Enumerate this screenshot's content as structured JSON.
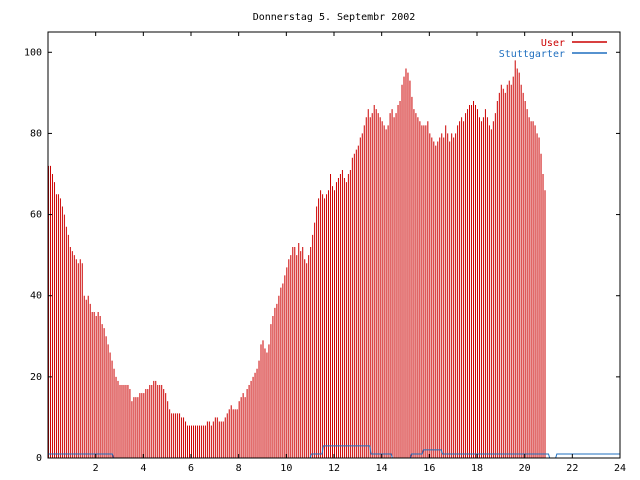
{
  "chart_data": {
    "type": "bar",
    "title": "Donnerstag 5. Septembr 2002",
    "xlabel": "",
    "ylabel": "",
    "xlim": [
      0,
      24
    ],
    "ylim": [
      0,
      105
    ],
    "x_ticks": [
      2,
      4,
      6,
      8,
      10,
      12,
      14,
      16,
      18,
      20,
      22,
      24
    ],
    "y_ticks": [
      0,
      20,
      40,
      60,
      80,
      100
    ],
    "grid": false,
    "legend_position": "top-right",
    "colors": {
      "user": "#cc0000",
      "stuttgarter": "#1f6fbf",
      "axis": "#000000"
    },
    "series": [
      {
        "name": "User",
        "step_hours": 0.08333,
        "values": [
          72,
          72,
          70,
          68,
          65,
          65,
          64,
          62,
          60,
          57,
          55,
          52,
          51,
          50,
          49,
          48,
          49,
          48,
          40,
          39,
          40,
          38,
          36,
          36,
          35,
          36,
          35,
          33,
          32,
          30,
          28,
          26,
          24,
          22,
          20,
          19,
          18,
          18,
          18,
          18,
          18,
          17,
          14,
          15,
          15,
          15,
          16,
          16,
          16,
          17,
          17,
          18,
          18,
          19,
          19,
          18,
          18,
          18,
          17,
          16,
          14,
          12,
          11,
          11,
          11,
          11,
          11,
          10,
          10,
          9,
          8,
          8,
          8,
          8,
          8,
          8,
          8,
          8,
          8,
          8,
          9,
          9,
          8,
          9,
          10,
          10,
          9,
          9,
          9,
          10,
          11,
          12,
          13,
          12,
          12,
          12,
          14,
          15,
          16,
          15,
          17,
          18,
          19,
          20,
          21,
          22,
          24,
          28,
          29,
          27,
          26,
          28,
          33,
          35,
          37,
          38,
          40,
          42,
          43,
          45,
          47,
          49,
          50,
          52,
          52,
          50,
          53,
          51,
          52,
          49,
          48,
          50,
          52,
          55,
          58,
          62,
          64,
          66,
          65,
          64,
          65,
          66,
          70,
          67,
          66,
          68,
          69,
          70,
          71,
          69,
          68,
          70,
          71,
          74,
          75,
          76,
          77,
          79,
          80,
          82,
          84,
          86,
          84,
          85,
          87,
          86,
          85,
          84,
          83,
          82,
          81,
          82,
          85,
          86,
          84,
          85,
          87,
          88,
          92,
          94,
          96,
          95,
          93,
          89,
          86,
          85,
          84,
          83,
          82,
          82,
          82,
          83,
          80,
          79,
          78,
          77,
          78,
          79,
          80,
          79,
          82,
          80,
          78,
          80,
          79,
          80,
          82,
          83,
          84,
          83,
          85,
          86,
          87,
          87,
          88,
          87,
          86,
          84,
          83,
          84,
          86,
          84,
          82,
          81,
          83,
          85,
          88,
          90,
          92,
          91,
          90,
          92,
          93,
          92,
          94,
          98,
          96,
          95,
          92,
          90,
          88,
          86,
          84,
          83,
          83,
          82,
          80,
          79,
          75,
          70,
          66
        ]
      },
      {
        "name": "Stuttgarter",
        "points": [
          [
            0,
            1
          ],
          [
            2.7,
            1
          ],
          [
            2.75,
            0
          ],
          [
            11.0,
            0
          ],
          [
            11.05,
            1
          ],
          [
            11.5,
            1
          ],
          [
            11.55,
            3
          ],
          [
            13.5,
            3
          ],
          [
            13.55,
            1
          ],
          [
            14.4,
            1
          ],
          [
            14.45,
            0
          ],
          [
            15.2,
            0
          ],
          [
            15.25,
            1
          ],
          [
            15.7,
            1
          ],
          [
            15.75,
            2
          ],
          [
            16.5,
            2
          ],
          [
            16.55,
            1
          ],
          [
            21.0,
            1
          ],
          [
            21.05,
            0
          ],
          [
            21.3,
            0
          ],
          [
            21.35,
            1
          ],
          [
            24,
            1
          ]
        ]
      }
    ]
  }
}
